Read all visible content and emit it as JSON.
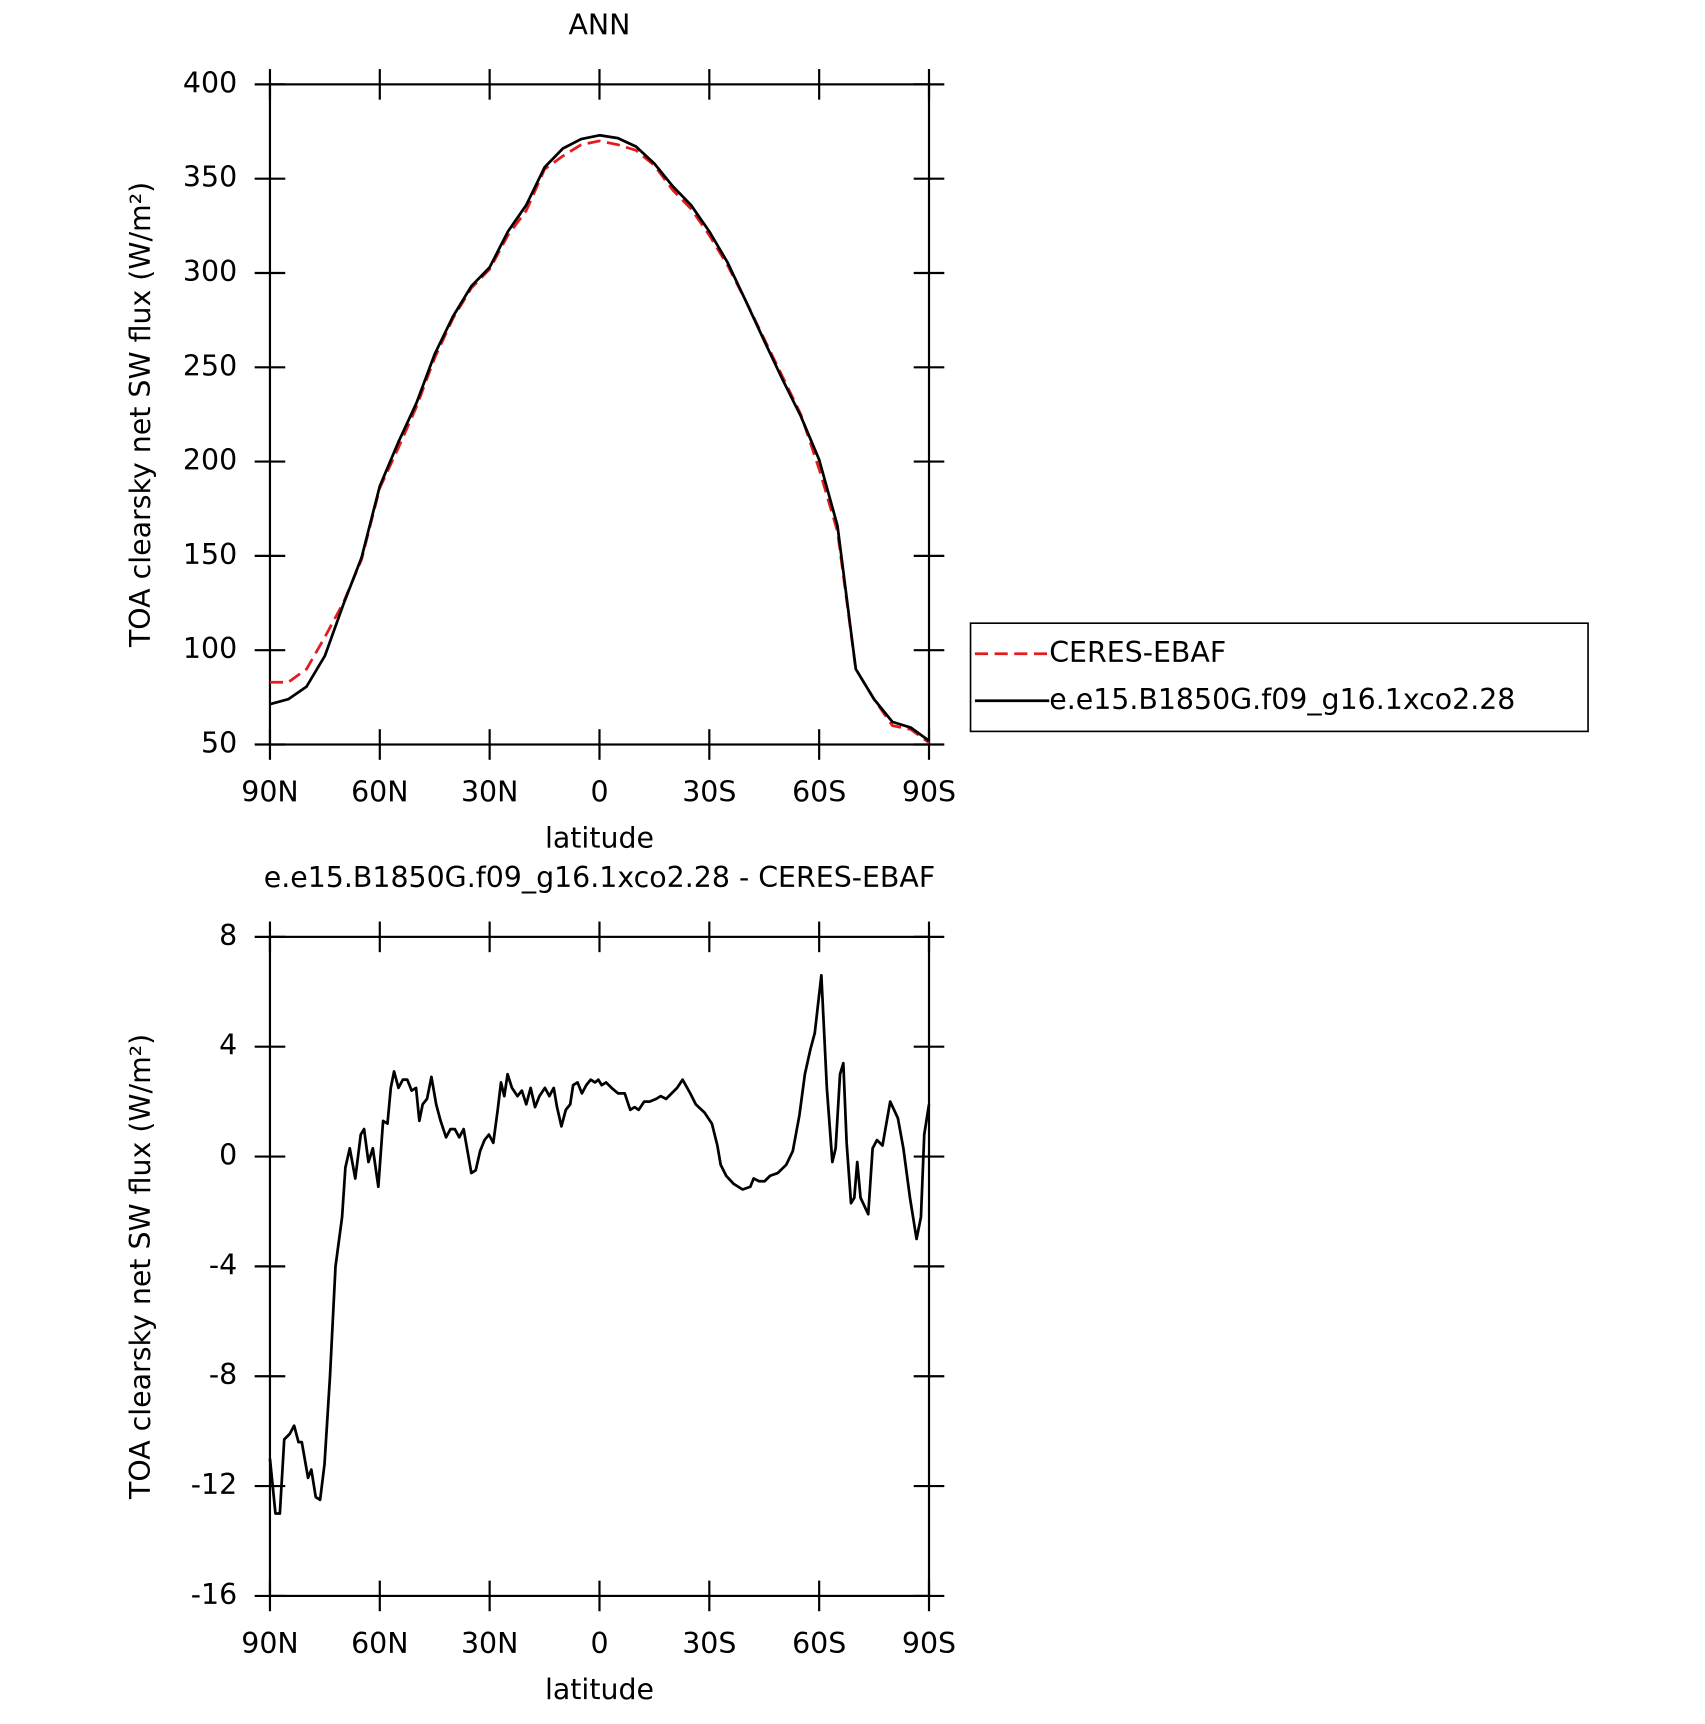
{
  "chart_data": [
    {
      "type": "line",
      "title": "ANN",
      "x_label": "latitude",
      "y_label": "TOA clearsky net SW flux (W/m²)",
      "x": [
        90,
        85,
        80,
        75,
        70,
        65,
        60,
        55,
        50,
        45,
        40,
        35,
        30,
        25,
        20,
        15,
        10,
        5,
        0,
        -5,
        -10,
        -15,
        -20,
        -25,
        -30,
        -35,
        -40,
        -45,
        -50,
        -55,
        -60,
        -65,
        -70,
        -75,
        -80,
        -85,
        -90
      ],
      "series": [
        {
          "name": "CERES-EBAF",
          "color": "#e41a1c",
          "line_style": "dashed",
          "values": [
            83,
            83,
            90,
            107,
            125,
            148,
            186,
            207,
            229,
            255,
            276,
            292,
            302,
            320,
            333,
            355,
            362,
            368,
            370,
            368,
            365,
            357,
            344,
            334,
            320,
            304,
            285,
            265,
            245,
            225,
            196,
            163,
            90,
            74,
            60,
            58,
            51
          ]
        },
        {
          "name": "e.e15.B1850G.f09_g16.1xco2.28",
          "color": "#000000",
          "line_style": "solid",
          "values": [
            71.4,
            74,
            80.7,
            97,
            124,
            149,
            187,
            210,
            231,
            257,
            277,
            293,
            303,
            322,
            336,
            356,
            366,
            371,
            373,
            371.5,
            367,
            358,
            346,
            336,
            322,
            305.5,
            285,
            264,
            243.5,
            224,
            201,
            166,
            90,
            74,
            62,
            59,
            52
          ]
        }
      ],
      "xlim": [
        90,
        -90
      ],
      "xticks": [
        {
          "value": 90,
          "label": "90N"
        },
        {
          "value": 60,
          "label": "60N"
        },
        {
          "value": 30,
          "label": "30N"
        },
        0,
        {
          "value": -30,
          "label": "30S"
        },
        {
          "value": -60,
          "label": "60S"
        },
        {
          "value": -90,
          "label": "90S"
        }
      ],
      "ylim": [
        50,
        400
      ],
      "yticks": [
        50,
        100,
        150,
        200,
        250,
        300,
        350,
        400
      ],
      "legend": "right"
    },
    {
      "type": "line",
      "title": "e.e15.B1850G.f09_g16.1xco2.28 - CERES-EBAF",
      "x_label": "latitude",
      "y_label": "TOA clearsky net SW flux (W/m²)",
      "x": [
        90,
        88.5,
        87.3,
        86.1,
        84.6,
        83.4,
        82.2,
        81.3,
        79.6,
        78.7,
        77.5,
        76.3,
        75.1,
        73.6,
        72.1,
        70.3,
        69.4,
        68.2,
        66.7,
        65.2,
        64.3,
        63.1,
        61.9,
        60.4,
        59.1,
        57.9,
        57,
        56.1,
        54.9,
        53.7,
        52.5,
        51.3,
        50.1,
        49.2,
        48.3,
        47.1,
        45.9,
        44.6,
        43.4,
        41.9,
        40.7,
        39.5,
        38.3,
        37.1,
        35,
        33.8,
        32.6,
        31.4,
        30.2,
        29,
        27.8,
        26.9,
        26,
        25.1,
        23.9,
        22.4,
        21.2,
        20,
        18.8,
        17.6,
        16.4,
        14.9,
        13.7,
        12.5,
        11.6,
        10.4,
        9.2,
        8,
        7.2,
        6,
        4.8,
        3.6,
        2.4,
        1.2,
        0.3,
        -0.6,
        -1.8,
        -3.3,
        -5.1,
        -6.9,
        -8.4,
        -9.6,
        -10.7,
        -12.2,
        -13.7,
        -15.5,
        -16.7,
        -18.2,
        -19.7,
        -21.2,
        -22.7,
        -24.8,
        -26.3,
        -28.7,
        -30.7,
        -32.2,
        -33.1,
        -34.6,
        -36.7,
        -39.1,
        -41.2,
        -42.1,
        -43.6,
        -45.1,
        -46.6,
        -48.7,
        -51,
        -52.8,
        -54.6,
        -56.1,
        -57.6,
        -58.8,
        -60.6,
        -62.1,
        -63.6,
        -64.5,
        -65.7,
        -66.6,
        -67.5,
        -68.7,
        -69.6,
        -70.4,
        -71.3,
        -73.4,
        -74.6,
        -75.8,
        -77.3,
        -79.4,
        -81.5,
        -83,
        -84.8,
        -86.6,
        -87.8,
        -88.7,
        -90
      ],
      "series": [
        {
          "color": "#000000",
          "line_style": "solid",
          "values": [
            -11,
            -13,
            -13,
            -10.3,
            -10.1,
            -9.8,
            -10.4,
            -10.4,
            -11.7,
            -11.4,
            -12.4,
            -12.5,
            -11.2,
            -8,
            -4,
            -2.2,
            -0.4,
            0.3,
            -0.8,
            0.8,
            1.0,
            -0.2,
            0.3,
            -1.1,
            1.3,
            1.2,
            2.5,
            3.1,
            2.5,
            2.8,
            2.8,
            2.4,
            2.5,
            1.3,
            1.9,
            2.1,
            2.9,
            1.9,
            1.3,
            0.7,
            1.0,
            1.0,
            0.7,
            1.0,
            -0.6,
            -0.5,
            0.2,
            0.6,
            0.8,
            0.5,
            1.7,
            2.7,
            2.2,
            3.0,
            2.5,
            2.2,
            2.4,
            1.9,
            2.5,
            1.8,
            2.2,
            2.5,
            2.2,
            2.5,
            1.8,
            1.1,
            1.7,
            1.9,
            2.6,
            2.7,
            2.3,
            2.6,
            2.8,
            2.7,
            2.8,
            2.6,
            2.7,
            2.5,
            2.3,
            2.3,
            1.7,
            1.8,
            1.7,
            2.0,
            2.0,
            2.1,
            2.2,
            2.1,
            2.3,
            2.5,
            2.8,
            2.3,
            1.9,
            1.6,
            1.2,
            0.4,
            -0.3,
            -0.7,
            -1.0,
            -1.2,
            -1.1,
            -0.8,
            -0.9,
            -0.9,
            -0.7,
            -0.6,
            -0.3,
            0.2,
            1.5,
            3.0,
            3.9,
            4.5,
            6.6,
            2.5,
            -0.2,
            0.3,
            3.0,
            3.4,
            0.5,
            -1.7,
            -1.5,
            -0.2,
            -1.5,
            -2.1,
            0.3,
            0.6,
            0.4,
            2.0,
            1.4,
            0.3,
            -1.5,
            -3.0,
            -2.2,
            0.8,
            1.9
          ]
        }
      ],
      "xlim": [
        90,
        -90
      ],
      "xticks": [
        {
          "value": 90,
          "label": "90N"
        },
        {
          "value": 60,
          "label": "60N"
        },
        {
          "value": 30,
          "label": "30N"
        },
        0,
        {
          "value": -30,
          "label": "30S"
        },
        {
          "value": -60,
          "label": "60S"
        },
        {
          "value": -90,
          "label": "90S"
        }
      ],
      "ylim": [
        -16,
        8
      ],
      "yticks": [
        -16,
        -12,
        -8,
        -4,
        0,
        4,
        8
      ]
    }
  ]
}
